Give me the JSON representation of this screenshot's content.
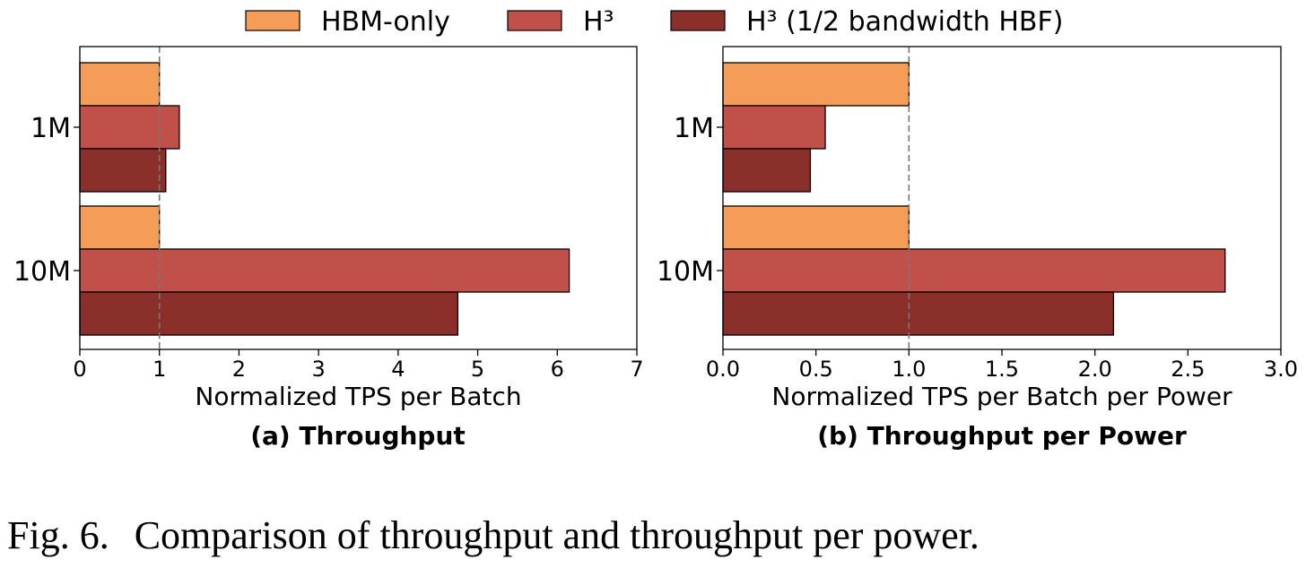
{
  "legend": [
    {
      "label": "HBM-only",
      "color": "#f59d58"
    },
    {
      "label": "H³",
      "color": "#c1504a"
    },
    {
      "label": "H³ (1/2 bandwidth HBF)",
      "color": "#8b2f2a"
    }
  ],
  "chart_data": [
    {
      "type": "bar",
      "orientation": "horizontal",
      "title": "(a) Throughput",
      "xlabel": "Normalized TPS per Batch",
      "ylabel": "",
      "categories": [
        "1M",
        "10M"
      ],
      "series": [
        {
          "name": "HBM-only",
          "values": [
            1.0,
            1.0
          ]
        },
        {
          "name": "H³",
          "values": [
            1.25,
            6.15
          ]
        },
        {
          "name": "H³ (1/2 bandwidth HBF)",
          "values": [
            1.08,
            4.75
          ]
        }
      ],
      "xlim": [
        0,
        7
      ],
      "xticks": [
        0,
        1,
        2,
        3,
        4,
        5,
        6,
        7
      ],
      "xtick_labels": [
        "0",
        "1",
        "2",
        "3",
        "4",
        "5",
        "6",
        "7"
      ],
      "reference_line": 1
    },
    {
      "type": "bar",
      "orientation": "horizontal",
      "title": "(b) Throughput per Power",
      "xlabel": "Normalized TPS per Batch per Power",
      "ylabel": "",
      "categories": [
        "1M",
        "10M"
      ],
      "series": [
        {
          "name": "HBM-only",
          "values": [
            1.0,
            1.0
          ]
        },
        {
          "name": "H³",
          "values": [
            0.55,
            2.7
          ]
        },
        {
          "name": "H³ (1/2 bandwidth HBF)",
          "values": [
            0.47,
            2.1
          ]
        }
      ],
      "xlim": [
        0,
        3
      ],
      "xticks": [
        0,
        0.5,
        1.0,
        1.5,
        2.0,
        2.5,
        3.0
      ],
      "xtick_labels": [
        "0.0",
        "0.5",
        "1.0",
        "1.5",
        "2.0",
        "2.5",
        "3.0"
      ],
      "reference_line": 1
    }
  ],
  "caption": {
    "number": "Fig. 6.",
    "text": "Comparison of throughput and throughput per power."
  }
}
